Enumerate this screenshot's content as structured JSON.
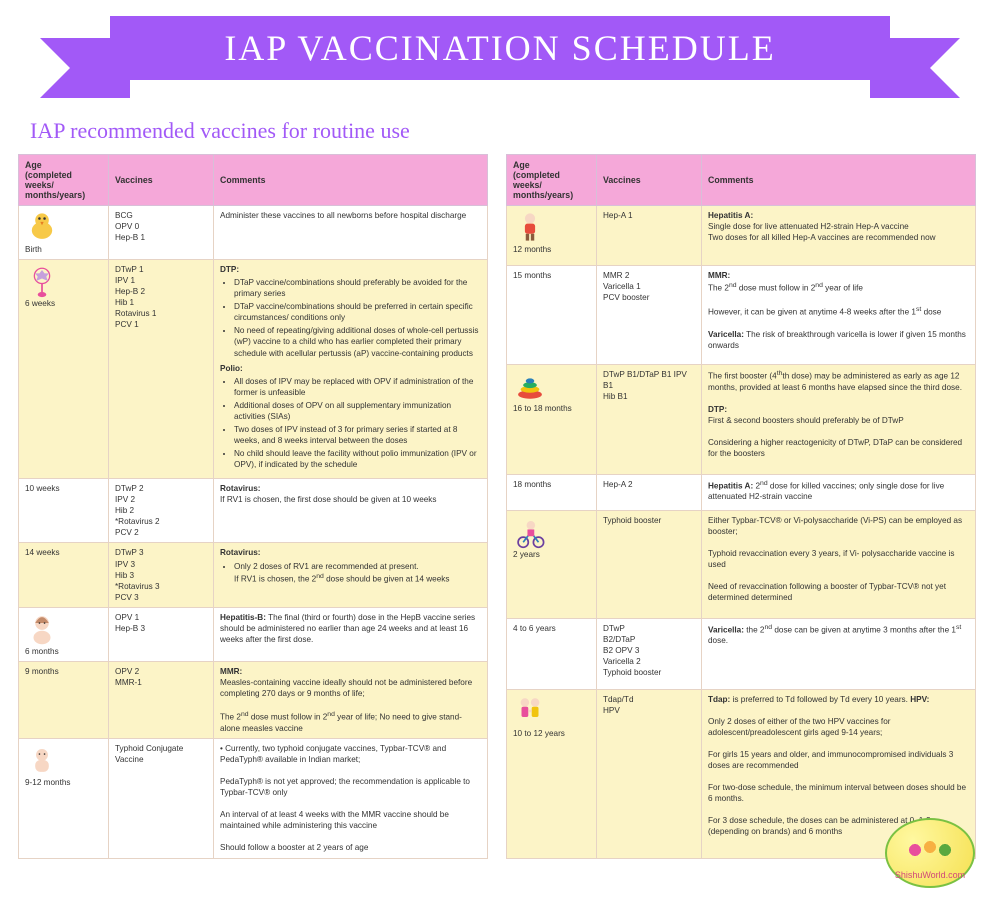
{
  "banner_title": "IAP VACCINATION SCHEDULE",
  "subtitle": "IAP recommended vaccines for routine use",
  "colors": {
    "banner_bg": "#a259f7",
    "header_bg": "#f5a8d9",
    "band_bg": "#fcf4c7",
    "border": "#e6d3c5"
  },
  "headers": {
    "age": "Age\n(completed weeks/\nmonths/years)",
    "vaccines": "Vaccines",
    "comments": "Comments"
  },
  "left": [
    {
      "band": "plain",
      "age": "Birth",
      "vaccines": "BCG\nOPV 0\nHep-B 1",
      "comments_html": "Administer these vaccines to all newborns before hospital discharge",
      "icon": "chick"
    },
    {
      "band": "band",
      "age": "6 weeks",
      "vaccines": "DTwP 1\nIPV 1\nHep-B 2\nHib 1\nRotavirus 1\nPCV 1",
      "comments_html": "<b>DTP:</b><ul><li>DTaP vaccine/combinations should preferably be avoided for the primary series</li><li>DTaP vaccine/combinations should be preferred in certain specific circumstances/ conditions only</li><li>No need of repeating/giving additional doses of whole-cell pertussis (wP) vaccine to a child who has earlier completed their primary schedule with acellular pertussis (aP) vaccine-containing products</li></ul><b>Polio:</b><ul><li>All doses of IPV may be replaced with OPV if administration of the former is unfeasible</li><li>Additional doses of OPV on all supplementary immunization activities (SIAs)</li><li>Two doses of IPV instead of 3 for primary series if started at 8 weeks, and 8 weeks interval between the doses</li><li>No child should leave the facility without polio immunization (IPV or OPV), if indicated by the schedule</li></ul>",
      "icon": "rattle"
    },
    {
      "band": "plain",
      "age": "10 weeks",
      "vaccines": "DTwP 2\nIPV 2\nHib 2\n*Rotavirus 2\nPCV 2",
      "comments_html": "<b>Rotavirus:</b><br>If RV1 is chosen, the first dose should be given at 10 weeks"
    },
    {
      "band": "band",
      "age": "14 weeks",
      "vaccines": "DTwP 3\nIPV 3\nHib 3\n*Rotavirus 3\nPCV 3",
      "comments_html": "<b>Rotavirus:</b><ul><li>Only 2 doses of RV1 are recommended at present.<br>If RV1 is chosen, the 2<sup>nd</sup> dose should be given at 14 weeks</li></ul>"
    },
    {
      "band": "plain",
      "age": "6 months",
      "vaccines": "OPV 1\nHep-B 3",
      "comments_html": "<b>Hepatitis-B:</b> The final (third or fourth) dose in the HepB vaccine series should be administered no earlier than age 24 weeks and at least 16 weeks after the first dose.",
      "icon": "baby"
    },
    {
      "band": "band",
      "age": "9 months",
      "vaccines": "OPV 2\nMMR-1",
      "comments_html": "<b>MMR:</b><br>Measles-containing vaccine ideally should not be administered before completing 270 days or 9 months of life;<br><br>The 2<sup>nd</sup> dose must follow in 2<sup>nd</sup> year of life; No need to give stand-alone measles vaccine"
    },
    {
      "band": "plain",
      "age": "9-12 months",
      "vaccines": "Typhoid Conjugate Vaccine",
      "comments_html": "• Currently, two typhoid conjugate vaccines, Typbar-TCV® and PedaTyph® available in Indian market;<br><br>PedaTyph® is not yet approved; the recommendation is applicable to Typbar-TCV® only<br><br>An interval of at least 4 weeks with the MMR vaccine should be maintained while administering this vaccine<br><br>Should follow a booster at 2 years of age",
      "icon": "infant"
    }
  ],
  "right": [
    {
      "band": "band",
      "age": "12 months",
      "vaccines": "Hep-A 1",
      "comments_html": "<b>Hepatitis A:</b><br>Single dose for live attenuated H2-strain Hep-A vaccine<br>Two doses for all killed Hep-A vaccines are recommended now",
      "icon": "toddler"
    },
    {
      "band": "plain",
      "age": "15 months",
      "vaccines": "MMR 2\nVaricella 1\nPCV booster",
      "comments_html": "<b>MMR:</b><br>The 2<sup>nd</sup> dose must follow in 2<sup>nd</sup> year of life<br><br>However, it can be given at anytime 4-8 weeks after the 1<sup>st</sup> dose<br><br><b>Varicella:</b> The risk of breakthrough varicella is lower if given 15 months onwards"
    },
    {
      "band": "band",
      "age": "16 to 18 months",
      "vaccines": "DTwP B1/DTaP B1 IPV B1\nHib B1",
      "comments_html": "The first booster (4<sup>th</sup>th dose) may be administered as early as age 12 months, provided at least 6 months have elapsed since the third dose.<br><br><b>DTP:</b><br>First &amp; second boosters should preferably be of DTwP<br><br>Considering a higher reactogenicity of DTwP, DTaP can be considered for the boosters",
      "icon": "rings"
    },
    {
      "band": "plain",
      "age": "18 months",
      "vaccines": "Hep-A 2",
      "comments_html": "<b>Hepatitis A:</b> 2<sup>nd</sup> dose for killed vaccines; only single dose for live attenuated H2-strain vaccine"
    },
    {
      "band": "band",
      "age": "2 years",
      "vaccines": "Typhoid booster",
      "comments_html": "Either Typbar-TCV® or Vi-polysaccharide (Vi-PS) can be employed as booster;<br><br>Typhoid revaccination every 3 years, if Vi- polysaccharide vaccine is used<br><br>Need of revaccination following a booster of Typbar-TCV® not yet determined determined",
      "icon": "girl-bike"
    },
    {
      "band": "plain",
      "age": "4 to 6 years",
      "vaccines": "DTwP\nB2/DTaP\nB2 OPV 3\nVaricella 2\nTyphoid booster",
      "comments_html": "<b>Varicella:</b> the 2<sup>nd</sup> dose can be given at anytime 3 months after the 1<sup>st</sup> dose."
    },
    {
      "band": "band",
      "age": "10 to 12 years",
      "vaccines": "Tdap/Td\nHPV",
      "comments_html": "<b>Tdap:</b> is preferred to Td followed by Td every 10 years. <b>HPV:</b><br><br>Only 2 doses of either of the two HPV vaccines for adolescent/preadolescent girls aged 9-14 years;<br><br>For girls 15 years and older, and immunocompromised individuals 3 doses are recommended<br><br>For two-dose schedule, the minimum interval between doses should be 6 months.<br><br>For 3 dose schedule, the doses can be administered at 0, 1-2 (depending on brands) and 6 months",
      "icon": "kids"
    }
  ],
  "logo_text": "ShishuWorld.com"
}
